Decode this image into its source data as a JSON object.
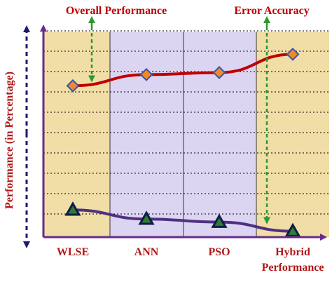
{
  "chart_data": {
    "type": "line",
    "title": "",
    "ylabel": "Performance (in Percentage)",
    "xlabel": "",
    "categories": [
      "WLSE",
      "ANN",
      "PSO",
      "Hybrid Performance"
    ],
    "category_lines": [
      [
        "WLSE"
      ],
      [
        "ANN"
      ],
      [
        "PSO"
      ],
      [
        "Hybrid",
        "Performance"
      ]
    ],
    "ylim": [
      0,
      100
    ],
    "grid": true,
    "series": [
      {
        "name": "",
        "marker": "diamond",
        "color": "#c00000",
        "values": [
          73,
          78.5,
          79.5,
          88.5
        ]
      },
      {
        "name": "",
        "marker": "triangle",
        "color": "#503080",
        "values": [
          12,
          7.5,
          6,
          1.5
        ]
      }
    ],
    "annotations": [
      {
        "text": "Overall Performance",
        "target_category": 0,
        "color": "#c00000"
      },
      {
        "text": "Error Accuracy",
        "target_category": 3,
        "color": "#c00000"
      }
    ],
    "colors": {
      "band_a": "#f1dda6",
      "band_b": "#dcd5f2",
      "axis": "#6a2a8a",
      "label": "#b01818",
      "annotation_arrow": "#2a9a2a",
      "y_arrow": "#1a1a70",
      "grid": "#000000"
    }
  }
}
